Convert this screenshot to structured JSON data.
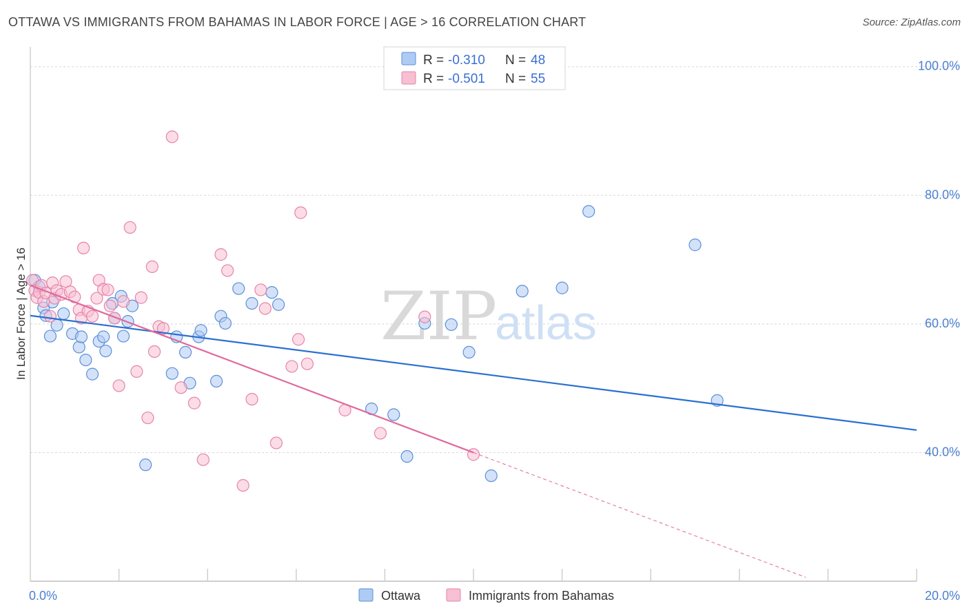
{
  "header": {
    "title": "OTTAWA VS IMMIGRANTS FROM BAHAMAS IN LABOR FORCE | AGE > 16 CORRELATION CHART",
    "source": "Source: ZipAtlas.com"
  },
  "watermark": {
    "zip": "ZIP",
    "atlas": "atlas"
  },
  "colors": {
    "ottawa_fill": "#aecbf3",
    "ottawa_stroke": "#5b8fd8",
    "ottawa_line": "#2a6fd0",
    "bahamas_fill": "#f7bfd3",
    "bahamas_stroke": "#e684a8",
    "bahamas_line": "#e0689a",
    "grid": "#d8d8d8",
    "tick_text": "#4a7fd0"
  },
  "legend": {
    "rows": [
      {
        "r_label": "R = ",
        "r_value": "-0.310",
        "n_label": "N = ",
        "n_value": "48"
      },
      {
        "r_label": "R = ",
        "r_value": "-0.501",
        "n_label": "N = ",
        "n_value": "55"
      }
    ]
  },
  "bottom_legend": [
    "Ottawa",
    "Immigrants from Bahamas"
  ],
  "chart_data": {
    "type": "scatter",
    "title": "OTTAWA VS IMMIGRANTS FROM BAHAMAS IN LABOR FORCE | AGE > 16 CORRELATION CHART",
    "xlabel": "",
    "ylabel": "In Labor Force | Age > 16",
    "xlim": [
      0,
      20
    ],
    "ylim": [
      20,
      100
    ],
    "x_tick_labels": [
      {
        "value": 0,
        "label": "0.0%"
      },
      {
        "value": 20,
        "label": "20.0%"
      }
    ],
    "y_tick_labels": [
      {
        "value": 100,
        "label": "100.0%"
      },
      {
        "value": 80,
        "label": "80.0%"
      },
      {
        "value": 60,
        "label": "60.0%"
      },
      {
        "value": 40,
        "label": "40.0%"
      }
    ],
    "y_gridlines": [
      100,
      80,
      60,
      40
    ],
    "x_minor_ticks": [
      2,
      4,
      6,
      8,
      10,
      12,
      14,
      16,
      18,
      20
    ],
    "grid": true,
    "legend_position": "top-center",
    "series": [
      {
        "name": "Ottawa",
        "r": -0.31,
        "n": 48,
        "trend": {
          "x": [
            0,
            20
          ],
          "y": [
            61.3,
            43.5
          ]
        },
        "points": [
          [
            0.1,
            66.8
          ],
          [
            0.2,
            65.8
          ],
          [
            0.3,
            62.5
          ],
          [
            0.35,
            61.3
          ],
          [
            0.45,
            58.1
          ],
          [
            0.5,
            63.4
          ],
          [
            0.6,
            59.8
          ],
          [
            0.75,
            61.6
          ],
          [
            0.95,
            58.5
          ],
          [
            1.1,
            56.4
          ],
          [
            1.15,
            58.0
          ],
          [
            1.25,
            54.4
          ],
          [
            1.4,
            52.2
          ],
          [
            1.55,
            57.3
          ],
          [
            1.65,
            58.0
          ],
          [
            1.7,
            55.8
          ],
          [
            1.85,
            63.2
          ],
          [
            1.9,
            60.9
          ],
          [
            2.05,
            64.3
          ],
          [
            2.1,
            58.1
          ],
          [
            2.2,
            60.4
          ],
          [
            2.3,
            62.8
          ],
          [
            2.6,
            38.1
          ],
          [
            3.2,
            52.3
          ],
          [
            3.3,
            58.0
          ],
          [
            3.6,
            50.8
          ],
          [
            3.5,
            55.6
          ],
          [
            3.8,
            58.0
          ],
          [
            3.85,
            59.0
          ],
          [
            4.2,
            51.1
          ],
          [
            4.3,
            61.2
          ],
          [
            4.4,
            60.1
          ],
          [
            4.7,
            65.5
          ],
          [
            5.0,
            63.2
          ],
          [
            5.45,
            64.9
          ],
          [
            5.6,
            63.0
          ],
          [
            7.7,
            46.8
          ],
          [
            8.2,
            45.9
          ],
          [
            8.5,
            39.4
          ],
          [
            8.9,
            60.1
          ],
          [
            9.5,
            59.9
          ],
          [
            9.9,
            55.6
          ],
          [
            10.4,
            36.4
          ],
          [
            11.1,
            65.1
          ],
          [
            12.0,
            65.6
          ],
          [
            12.6,
            77.5
          ],
          [
            15.0,
            72.3
          ],
          [
            15.5,
            48.1
          ]
        ]
      },
      {
        "name": "Immigrants from Bahamas",
        "r": -0.501,
        "n": 55,
        "trend": {
          "x": [
            0,
            10
          ],
          "y": [
            66.0,
            40.0
          ]
        },
        "trend_dashed": {
          "x": [
            10,
            17.5
          ],
          "y": [
            40.0,
            20.6
          ]
        },
        "points": [
          [
            0.05,
            66.8
          ],
          [
            0.1,
            65.2
          ],
          [
            0.15,
            64.1
          ],
          [
            0.2,
            64.9
          ],
          [
            0.25,
            66.0
          ],
          [
            0.3,
            63.5
          ],
          [
            0.35,
            64.8
          ],
          [
            0.45,
            61.2
          ],
          [
            0.5,
            66.4
          ],
          [
            0.55,
            64.0
          ],
          [
            0.6,
            65.2
          ],
          [
            0.7,
            64.6
          ],
          [
            0.8,
            66.6
          ],
          [
            0.9,
            65.0
          ],
          [
            1.0,
            64.2
          ],
          [
            1.1,
            62.2
          ],
          [
            1.15,
            60.9
          ],
          [
            1.2,
            71.8
          ],
          [
            1.3,
            62.0
          ],
          [
            1.4,
            61.2
          ],
          [
            1.5,
            64.0
          ],
          [
            1.55,
            66.8
          ],
          [
            1.65,
            65.4
          ],
          [
            1.75,
            65.3
          ],
          [
            1.8,
            62.8
          ],
          [
            1.9,
            60.9
          ],
          [
            2.0,
            50.4
          ],
          [
            2.1,
            63.5
          ],
          [
            2.25,
            75.0
          ],
          [
            2.4,
            52.6
          ],
          [
            2.5,
            64.1
          ],
          [
            2.65,
            45.4
          ],
          [
            2.75,
            68.9
          ],
          [
            2.8,
            55.7
          ],
          [
            2.9,
            59.6
          ],
          [
            3.0,
            59.3
          ],
          [
            3.2,
            89.1
          ],
          [
            3.4,
            50.1
          ],
          [
            3.7,
            47.7
          ],
          [
            3.9,
            38.9
          ],
          [
            4.3,
            70.8
          ],
          [
            4.45,
            68.3
          ],
          [
            4.8,
            34.9
          ],
          [
            5.0,
            48.3
          ],
          [
            5.2,
            65.3
          ],
          [
            5.3,
            62.4
          ],
          [
            5.55,
            41.5
          ],
          [
            5.9,
            53.4
          ],
          [
            6.05,
            57.6
          ],
          [
            6.1,
            77.3
          ],
          [
            6.25,
            53.8
          ],
          [
            7.1,
            46.6
          ],
          [
            7.9,
            43.0
          ],
          [
            8.9,
            61.1
          ],
          [
            10.0,
            39.7
          ]
        ]
      }
    ]
  }
}
